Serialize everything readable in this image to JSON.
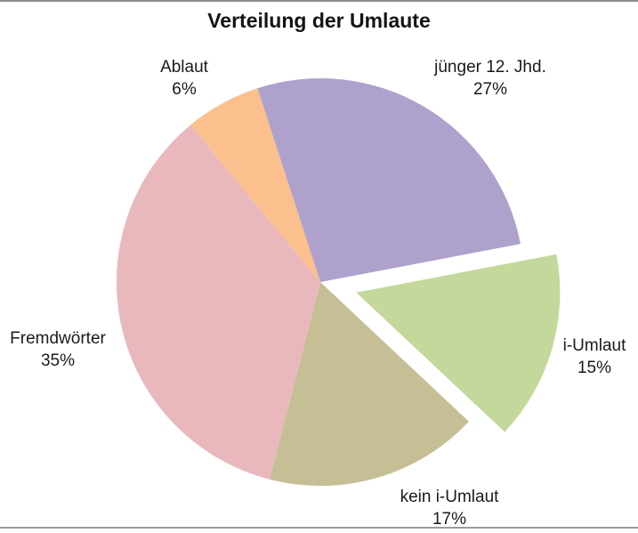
{
  "page": {
    "background": "#ffffff",
    "top_rule_color": "#8d8d8d",
    "bottom_rule_color": "#9c9c9c"
  },
  "chart_data": {
    "type": "pie",
    "title": "Verteilung der Umlaute",
    "start_angle_deg": -18,
    "clockwise": true,
    "legend_position": "none",
    "labels_position": "outside",
    "slices": [
      {
        "id": "juenger-12-jhd",
        "label": "jünger 12. Jhd.",
        "value_pct": 27,
        "pct_label": "27%",
        "color": "#aea1cb",
        "exploded": false
      },
      {
        "id": "i-umlaut",
        "label": "i-Umlaut",
        "value_pct": 15,
        "pct_label": "15%",
        "color": "#c4d89b",
        "exploded": true
      },
      {
        "id": "kein-i-umlaut",
        "label": "kein i-Umlaut",
        "value_pct": 17,
        "pct_label": "17%",
        "color": "#c6bf96",
        "exploded": false
      },
      {
        "id": "fremdwoerter",
        "label": "Fremdwörter",
        "value_pct": 35,
        "pct_label": "35%",
        "color": "#e9b8bd",
        "exploded": false
      },
      {
        "id": "ablaut",
        "label": "Ablaut",
        "value_pct": 6,
        "pct_label": "6%",
        "color": "#fbc08d",
        "exploded": false
      }
    ]
  }
}
